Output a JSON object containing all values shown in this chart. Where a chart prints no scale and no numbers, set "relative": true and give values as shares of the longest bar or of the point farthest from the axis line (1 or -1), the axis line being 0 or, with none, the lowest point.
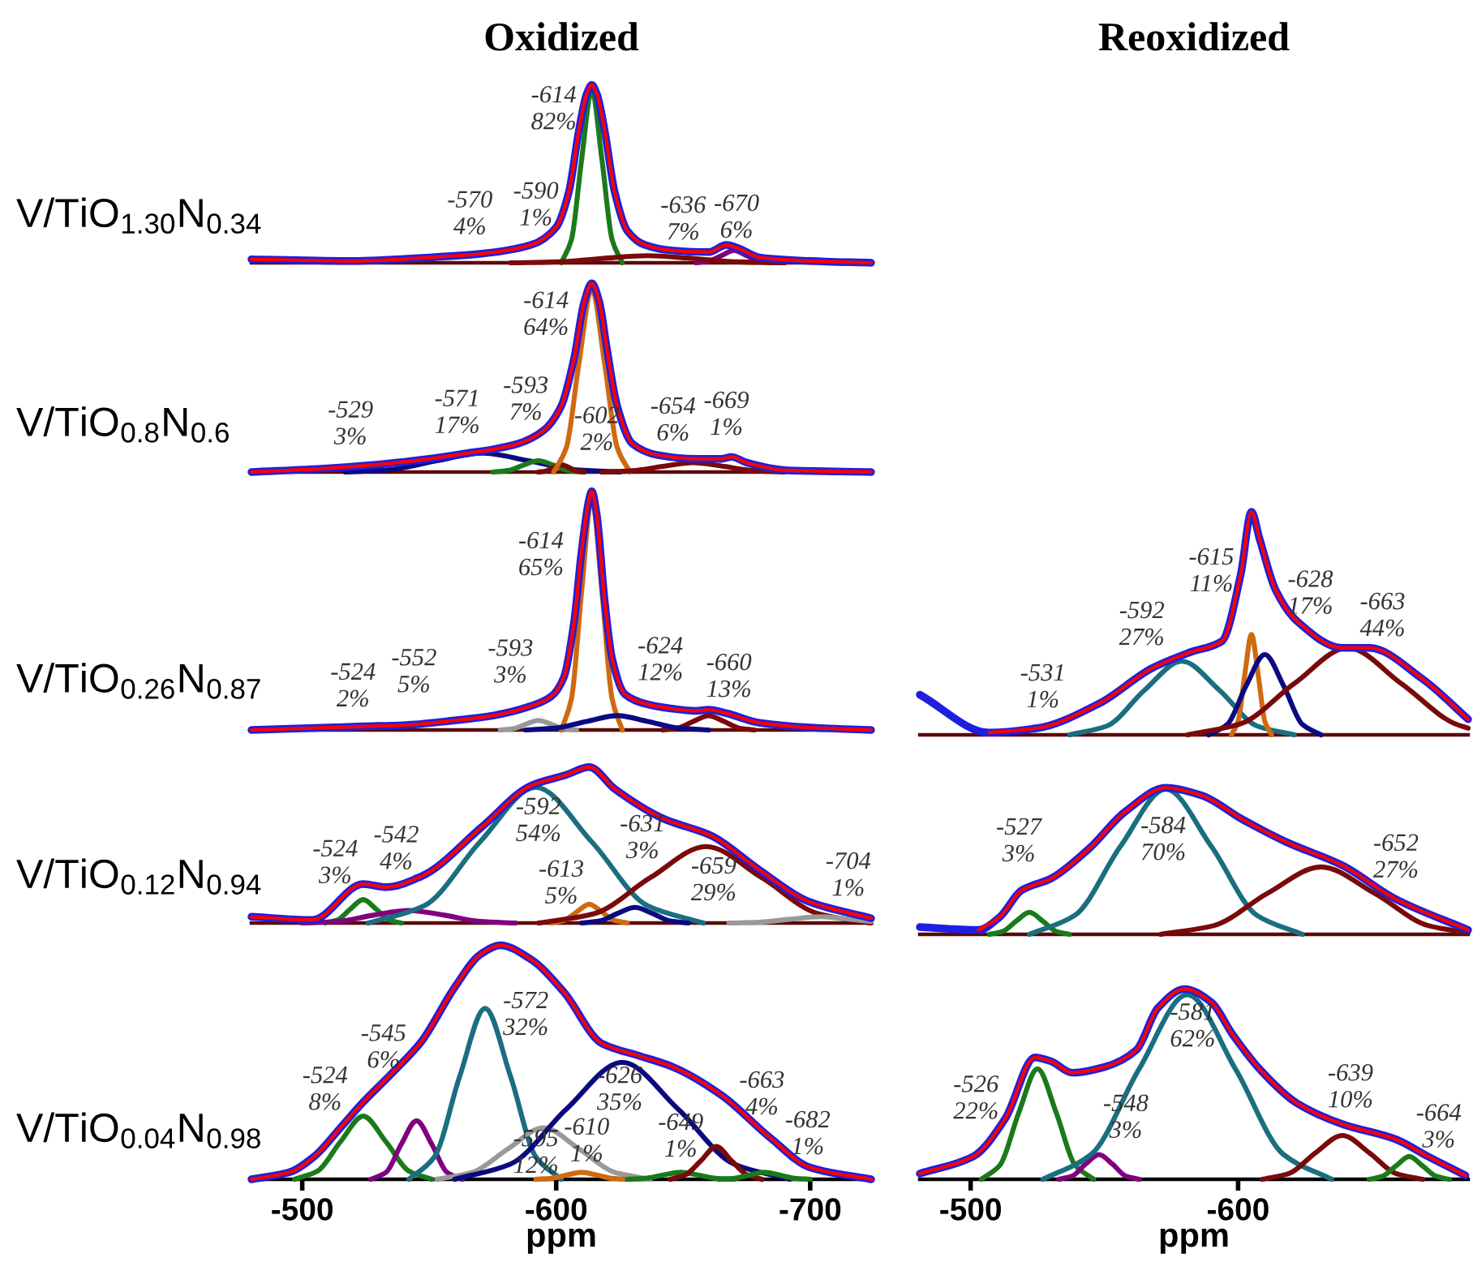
{
  "chart_data": [
    {
      "type": "line",
      "title": "Oxidized",
      "ylabel": "V/TiO$_{1.30}$N$_{0.34}$",
      "relative": true,
      "xlim": [
        -480,
        -724
      ],
      "tick_labels": false,
      "series": [
        {
          "color": "#1f1fe0",
          "x": [
            -480,
            -520,
            -550,
            -570,
            -590,
            -600,
            -605,
            -609,
            -612,
            -614,
            -616,
            -619,
            -623,
            -628,
            -635,
            -645,
            -660,
            -667,
            -672,
            -680,
            -700,
            -724
          ],
          "values": [
            0.02,
            0.01,
            0.03,
            0.05,
            0.1,
            0.2,
            0.4,
            0.75,
            0.95,
            1.0,
            0.95,
            0.75,
            0.4,
            0.18,
            0.1,
            0.07,
            0.06,
            0.1,
            0.08,
            0.03,
            0.01,
            0.0
          ]
        },
        {
          "color": "#ff0000",
          "x": [
            -480,
            -520,
            -550,
            -570,
            -590,
            -600,
            -605,
            -609,
            -612,
            -614,
            -616,
            -619,
            -623,
            -628,
            -635,
            -645,
            -660,
            -667,
            -672,
            -680,
            -700,
            -724
          ],
          "values": [
            0.02,
            0.01,
            0.03,
            0.05,
            0.1,
            0.2,
            0.4,
            0.75,
            0.95,
            1.0,
            0.95,
            0.75,
            0.4,
            0.18,
            0.1,
            0.07,
            0.06,
            0.1,
            0.08,
            0.03,
            0.01,
            0.0
          ]
        },
        {
          "color": "#1a7a1a",
          "x": [
            -602,
            -606,
            -610,
            -614,
            -618,
            -622,
            -626
          ],
          "values": [
            0,
            0.13,
            0.58,
            0.97,
            0.58,
            0.13,
            0
          ]
        },
        {
          "color": "#800080",
          "x": [
            -655,
            -660,
            -665,
            -670,
            -675,
            -680,
            -685
          ],
          "values": [
            0,
            0.01,
            0.04,
            0.07,
            0.04,
            0.01,
            0
          ]
        },
        {
          "color": "#7a0a0a",
          "x": [
            -582,
            -600,
            -618,
            -636,
            -654,
            -672,
            -690
          ],
          "values": [
            0,
            0.005,
            0.024,
            0.04,
            0.024,
            0.005,
            0
          ]
        }
      ],
      "annotations": [
        "-614\n82%",
        "-570\n4%",
        "-590\n1%",
        "-636\n7%",
        "-670\n6%"
      ]
    },
    {
      "type": "line",
      "ylabel": "V/TiO$_{0.8}$N$_{0.6}$",
      "relative": true,
      "xlim": [
        -480,
        -724
      ],
      "tick_labels": false,
      "series": [
        {
          "color": "#1f1fe0",
          "x": [
            -480,
            -510,
            -530,
            -550,
            -565,
            -575,
            -585,
            -595,
            -602,
            -607,
            -611,
            -614,
            -617,
            -620,
            -624,
            -630,
            -640,
            -655,
            -665,
            -669,
            -675,
            -690,
            -724
          ],
          "values": [
            0.0,
            0.02,
            0.04,
            0.07,
            0.1,
            0.12,
            0.15,
            0.22,
            0.35,
            0.6,
            0.9,
            1.0,
            0.9,
            0.65,
            0.35,
            0.15,
            0.09,
            0.07,
            0.07,
            0.08,
            0.05,
            0.01,
            0.0
          ]
        },
        {
          "color": "#ff0000",
          "x": [
            -480,
            -510,
            -530,
            -550,
            -565,
            -575,
            -585,
            -595,
            -602,
            -607,
            -611,
            -614,
            -617,
            -620,
            -624,
            -630,
            -640,
            -655,
            -665,
            -669,
            -675,
            -690,
            -724
          ],
          "values": [
            0.0,
            0.02,
            0.04,
            0.07,
            0.1,
            0.12,
            0.15,
            0.22,
            0.35,
            0.6,
            0.9,
            1.0,
            0.9,
            0.65,
            0.35,
            0.15,
            0.09,
            0.07,
            0.07,
            0.08,
            0.05,
            0.01,
            0.0
          ]
        },
        {
          "color": "#0a0a80",
          "x": [
            -517,
            -535,
            -553,
            -571,
            -589,
            -607,
            -625
          ],
          "values": [
            0,
            0.013,
            0.06,
            0.1,
            0.06,
            0.013,
            0
          ]
        },
        {
          "color": "#1a7a1a",
          "x": [
            -575,
            -581,
            -587,
            -593,
            -599,
            -605,
            -611
          ],
          "values": [
            0,
            0.008,
            0.036,
            0.06,
            0.036,
            0.008,
            0
          ]
        },
        {
          "color": "#7a0a0a",
          "x": [
            -593,
            -596,
            -599,
            -602,
            -605,
            -608,
            -611
          ],
          "values": [
            0,
            0.005,
            0.024,
            0.04,
            0.024,
            0.005,
            0
          ]
        },
        {
          "color": "#d06a10",
          "x": [
            -599,
            -604,
            -609,
            -614,
            -619,
            -624,
            -629
          ],
          "values": [
            0,
            0.13,
            0.58,
            0.97,
            0.58,
            0.13,
            0
          ]
        },
        {
          "color": "#7a0a0a",
          "x": [
            -618,
            -630,
            -642,
            -654,
            -666,
            -678,
            -690
          ],
          "values": [
            0,
            0.007,
            0.03,
            0.05,
            0.03,
            0.007,
            0
          ]
        }
      ],
      "annotations": [
        "-614\n64%",
        "-529\n3%",
        "-571\n17%",
        "-593\n7%",
        "-602\n2%",
        "-654\n6%",
        "-669\n1%"
      ]
    },
    {
      "type": "line",
      "ylabel": "V/TiO$_{0.26}$N$_{0.87}$",
      "relative": true,
      "xlim": [
        -480,
        -724
      ],
      "tick_labels": false,
      "series": [
        {
          "color": "#1f1fe0",
          "x": [
            -480,
            -510,
            -524,
            -540,
            -560,
            -575,
            -590,
            -598,
            -603,
            -607,
            -610,
            -613,
            -614,
            -616,
            -619,
            -622,
            -627,
            -635,
            -645,
            -655,
            -660,
            -667,
            -680,
            -700,
            -724
          ],
          "values": [
            0,
            0.01,
            0.015,
            0.02,
            0.04,
            0.06,
            0.1,
            0.14,
            0.22,
            0.45,
            0.75,
            0.97,
            1.0,
            0.9,
            0.55,
            0.3,
            0.15,
            0.11,
            0.09,
            0.08,
            0.085,
            0.07,
            0.03,
            0.01,
            0
          ]
        },
        {
          "color": "#ff0000",
          "x": [
            -480,
            -510,
            -524,
            -540,
            -560,
            -575,
            -590,
            -598,
            -603,
            -607,
            -610,
            -613,
            -614,
            -616,
            -619,
            -622,
            -627,
            -635,
            -645,
            -655,
            -660,
            -667,
            -680,
            -700,
            -724
          ],
          "values": [
            0,
            0.01,
            0.015,
            0.02,
            0.04,
            0.06,
            0.1,
            0.14,
            0.22,
            0.45,
            0.75,
            0.97,
            1.0,
            0.9,
            0.55,
            0.3,
            0.15,
            0.11,
            0.09,
            0.08,
            0.085,
            0.07,
            0.03,
            0.01,
            0
          ]
        },
        {
          "color": "#999999",
          "x": [
            -578,
            -583,
            -588,
            -593,
            -598,
            -603,
            -608
          ],
          "values": [
            0,
            0.005,
            0.024,
            0.04,
            0.024,
            0.005,
            0
          ]
        },
        {
          "color": "#d06a10",
          "x": [
            -602,
            -606,
            -610,
            -614,
            -618,
            -622,
            -626
          ],
          "values": [
            0,
            0.13,
            0.58,
            0.97,
            0.58,
            0.13,
            0
          ]
        },
        {
          "color": "#7a0a0a",
          "x": [
            -642,
            -648,
            -654,
            -660,
            -666,
            -672,
            -678
          ],
          "values": [
            0,
            0.008,
            0.036,
            0.06,
            0.036,
            0.008,
            0
          ]
        },
        {
          "color": "#0a0a80",
          "x": [
            -588,
            -600,
            -612,
            -624,
            -636,
            -648,
            -660
          ],
          "values": [
            0,
            0.008,
            0.036,
            0.06,
            0.036,
            0.008,
            0
          ]
        }
      ],
      "annotations": [
        "-614\n65%",
        "-524\n2%",
        "-552\n5%",
        "-593\n3%",
        "-624\n12%",
        "-660\n13%"
      ]
    },
    {
      "type": "line",
      "title": "Reoxidized",
      "relative": true,
      "xlim": [
        -481,
        -686
      ],
      "tick_labels": false,
      "series": [
        {
          "color": "#1f1fe0",
          "x": [
            -481,
            -507,
            -525,
            -548,
            -568,
            -582,
            -594,
            -601,
            -605,
            -608,
            -614,
            -622,
            -639,
            -649,
            -669,
            -686
          ],
          "values": [
            0.18,
            0.01,
            0.03,
            0.14,
            0.3,
            0.37,
            0.42,
            0.72,
            1.0,
            0.88,
            0.65,
            0.51,
            0.39,
            0.39,
            0.25,
            0.07
          ]
        },
        {
          "color": "#ff0000",
          "x": [
            -507,
            -525,
            -548,
            -568,
            -582,
            -594,
            -601,
            -605,
            -608,
            -614,
            -622,
            -639,
            -649,
            -669,
            -686
          ],
          "values": [
            0.01,
            0.03,
            0.14,
            0.3,
            0.37,
            0.42,
            0.72,
            1.0,
            0.88,
            0.65,
            0.51,
            0.39,
            0.39,
            0.25,
            0.07
          ]
        },
        {
          "color": "#1a6e80",
          "x": [
            -537,
            -551,
            -565,
            -579,
            -593,
            -607,
            -621
          ],
          "values": [
            0,
            0.04,
            0.2,
            0.33,
            0.2,
            0.04,
            0
          ]
        },
        {
          "color": "#d06a10",
          "x": [
            -597.5,
            -600,
            -602.5,
            -605,
            -607.5,
            -610,
            -612.5
          ],
          "values": [
            0,
            0.06,
            0.27,
            0.45,
            0.27,
            0.06,
            0
          ]
        },
        {
          "color": "#0a0a80",
          "x": [
            -589,
            -596,
            -603,
            -610,
            -617,
            -624,
            -631
          ],
          "values": [
            0,
            0.047,
            0.22,
            0.36,
            0.22,
            0.047,
            0
          ]
        },
        {
          "color": "#7a0a0a",
          "x": [
            -581,
            -601,
            -621,
            -641,
            -661,
            -681,
            -686
          ],
          "values": [
            0,
            0.05,
            0.23,
            0.39,
            0.23,
            0.05,
            0.03
          ]
        }
      ],
      "annotations": [
        "-531\n1%",
        "-592\n27%",
        "-615\n11%",
        "-628\n17%",
        "-663\n44%"
      ]
    },
    {
      "type": "line",
      "ylabel": "V/TiO$_{0.12}$N$_{0.94}$",
      "relative": true,
      "xlim": [
        -480,
        -724
      ],
      "tick_labels": false,
      "series": [
        {
          "color": "#1f1fe0",
          "x": [
            -480,
            -504,
            -524,
            -533,
            -547,
            -571,
            -590,
            -604,
            -613,
            -623,
            -642,
            -661,
            -680,
            -699,
            -724
          ],
          "values": [
            0.04,
            0.02,
            0.25,
            0.23,
            0.3,
            0.62,
            0.88,
            0.95,
            1.0,
            0.86,
            0.67,
            0.56,
            0.34,
            0.14,
            0.03
          ]
        },
        {
          "color": "#ff0000",
          "x": [
            -480,
            -504,
            -524,
            -533,
            -547,
            -571,
            -590,
            -604,
            -613,
            -623,
            -642,
            -661,
            -680,
            -699,
            -724
          ],
          "values": [
            0.04,
            0.02,
            0.25,
            0.23,
            0.3,
            0.62,
            0.88,
            0.95,
            1.0,
            0.86,
            0.67,
            0.56,
            0.34,
            0.14,
            0.03
          ]
        },
        {
          "color": "#1a7a1a",
          "x": [
            -509,
            -514,
            -519,
            -524,
            -529,
            -534,
            -539
          ],
          "values": [
            0,
            0.02,
            0.09,
            0.15,
            0.09,
            0.02,
            0
          ]
        },
        {
          "color": "#800080",
          "x": [
            -500,
            -514,
            -528,
            -542,
            -556,
            -570,
            -584
          ],
          "values": [
            0,
            0.01,
            0.05,
            0.08,
            0.05,
            0.01,
            0
          ]
        },
        {
          "color": "#1a6e80",
          "x": [
            -526,
            -548,
            -570,
            -592,
            -614,
            -636,
            -658
          ],
          "values": [
            0,
            0.11,
            0.52,
            0.87,
            0.52,
            0.11,
            0
          ]
        },
        {
          "color": "#d06a10",
          "x": [
            -598,
            -603,
            -608,
            -613,
            -618,
            -623,
            -628
          ],
          "values": [
            0,
            0.016,
            0.07,
            0.12,
            0.07,
            0.016,
            0
          ]
        },
        {
          "color": "#0a0a80",
          "x": [
            -610,
            -617,
            -624,
            -631,
            -638,
            -645,
            -652
          ],
          "values": [
            0,
            0.013,
            0.06,
            0.1,
            0.06,
            0.013,
            0
          ]
        },
        {
          "color": "#7a0a0a",
          "x": [
            -593,
            -615,
            -637,
            -659,
            -681,
            -703,
            -724
          ],
          "values": [
            0,
            0.06,
            0.29,
            0.49,
            0.29,
            0.06,
            0
          ]
        },
        {
          "color": "#999999",
          "x": [
            -668,
            -680,
            -692,
            -704,
            -716,
            -724
          ],
          "values": [
            0,
            0.005,
            0.024,
            0.04,
            0.024,
            0.01
          ]
        }
      ],
      "annotations": [
        "-524\n3%",
        "-542\n4%",
        "-592\n54%",
        "-613\n5%",
        "-631\n3%",
        "-659\n29%",
        "-704\n1%"
      ]
    },
    {
      "type": "line",
      "relative": true,
      "xlim": [
        -481,
        -686
      ],
      "tick_labels": false,
      "series": [
        {
          "color": "#1f1fe0",
          "x": [
            -481,
            -503,
            -511,
            -519,
            -530,
            -544,
            -558,
            -573,
            -586,
            -602,
            -618,
            -639,
            -659,
            -686
          ],
          "values": [
            0.05,
            0.03,
            0.12,
            0.3,
            0.38,
            0.58,
            0.84,
            1.0,
            0.95,
            0.78,
            0.63,
            0.47,
            0.24,
            0.03
          ]
        },
        {
          "color": "#ff0000",
          "x": [
            -503,
            -511,
            -519,
            -530,
            -544,
            -558,
            -573,
            -586,
            -602,
            -618,
            -639,
            -659,
            -686
          ],
          "values": [
            0.03,
            0.12,
            0.3,
            0.38,
            0.58,
            0.84,
            1.0,
            0.95,
            0.78,
            0.63,
            0.47,
            0.24,
            0.03
          ]
        },
        {
          "color": "#1a7a1a",
          "x": [
            -507,
            -512,
            -517,
            -522,
            -527,
            -532,
            -537
          ],
          "values": [
            0,
            0.02,
            0.09,
            0.15,
            0.09,
            0.02,
            0
          ]
        },
        {
          "color": "#1a6e80",
          "x": [
            -522,
            -539,
            -556,
            -573,
            -590,
            -607,
            -624
          ],
          "values": [
            0,
            0.13,
            0.6,
            0.99,
            0.6,
            0.13,
            0
          ]
        },
        {
          "color": "#7a0a0a",
          "x": [
            -571,
            -591,
            -611,
            -631,
            -651,
            -671,
            -686
          ],
          "values": [
            0,
            0.06,
            0.28,
            0.46,
            0.28,
            0.06,
            0.01
          ]
        }
      ],
      "annotations": [
        "-527\n3%",
        "-584\n70%",
        "-652\n27%"
      ]
    },
    {
      "type": "line",
      "ylabel": "V/TiO$_{0.04}$N$_{0.98}$",
      "xlabel": "ppm",
      "relative": true,
      "xlim": [
        -480,
        -724
      ],
      "xticks": [
        -500,
        -600,
        -700
      ],
      "tick_labels": "x",
      "series": [
        {
          "color": "#1f1fe0",
          "x": [
            -480,
            -495,
            -505,
            -515,
            -524,
            -535,
            -547,
            -560,
            -570,
            -578,
            -590,
            -603,
            -618,
            -632,
            -646,
            -665,
            -684,
            -700,
            -724
          ],
          "values": [
            0.0,
            0.03,
            0.1,
            0.22,
            0.33,
            0.45,
            0.59,
            0.82,
            0.96,
            1.0,
            0.94,
            0.8,
            0.58,
            0.53,
            0.48,
            0.36,
            0.18,
            0.05,
            0.0
          ]
        },
        {
          "color": "#ff0000",
          "x": [
            -480,
            -495,
            -505,
            -515,
            -524,
            -535,
            -547,
            -560,
            -570,
            -578,
            -590,
            -603,
            -618,
            -632,
            -646,
            -665,
            -684,
            -700,
            -724
          ],
          "values": [
            0.0,
            0.03,
            0.1,
            0.22,
            0.33,
            0.45,
            0.59,
            0.82,
            0.96,
            1.0,
            0.94,
            0.8,
            0.58,
            0.53,
            0.48,
            0.36,
            0.18,
            0.05,
            0.0
          ]
        },
        {
          "color": "#1a7a1a",
          "x": [
            -497,
            -506,
            -515,
            -524,
            -533,
            -542,
            -551
          ],
          "values": [
            0,
            0.035,
            0.16,
            0.27,
            0.16,
            0.035,
            0
          ]
        },
        {
          "color": "#800080",
          "x": [
            -527,
            -533,
            -539,
            -545,
            -551,
            -557,
            -563
          ],
          "values": [
            0,
            0.03,
            0.15,
            0.25,
            0.15,
            0.03,
            0
          ]
        },
        {
          "color": "#1a6e80",
          "x": [
            -542,
            -552,
            -562,
            -572,
            -582,
            -592,
            -602
          ],
          "values": [
            0,
            0.095,
            0.44,
            0.73,
            0.44,
            0.095,
            0
          ]
        },
        {
          "color": "#999999",
          "x": [
            -553,
            -567,
            -581,
            -595,
            -609,
            -623,
            -637
          ],
          "values": [
            0,
            0.03,
            0.13,
            0.22,
            0.13,
            0.03,
            0
          ]
        },
        {
          "color": "#d06a10",
          "x": [
            -592,
            -598,
            -604,
            -610,
            -616,
            -622,
            -628
          ],
          "values": [
            0,
            0.004,
            0.018,
            0.03,
            0.018,
            0.004,
            0
          ]
        },
        {
          "color": "#0a0a80",
          "x": [
            -560,
            -582,
            -604,
            -626,
            -648,
            -670,
            -692
          ],
          "values": [
            0,
            0.065,
            0.3,
            0.5,
            0.3,
            0.065,
            0
          ]
        },
        {
          "color": "#1a7a1a",
          "x": [
            -628,
            -635,
            -642,
            -649,
            -656,
            -663,
            -670
          ],
          "values": [
            0,
            0.004,
            0.018,
            0.03,
            0.018,
            0.004,
            0
          ]
        },
        {
          "color": "#7a0a0a",
          "x": [
            -645,
            -651,
            -657,
            -663,
            -669,
            -675,
            -681
          ],
          "values": [
            0,
            0.02,
            0.08,
            0.14,
            0.08,
            0.02,
            0
          ]
        },
        {
          "color": "#1a7a1a",
          "x": [
            -664,
            -670,
            -676,
            -682,
            -688,
            -694,
            -700
          ],
          "values": [
            0,
            0.004,
            0.018,
            0.03,
            0.018,
            0.004,
            0
          ]
        }
      ],
      "annotations": [
        "-524\n8%",
        "-545\n6%",
        "-572\n32%",
        "-626\n35%",
        "-595\n12%",
        "-610\n1%",
        "-649\n1%",
        "-663\n4%",
        "-682\n1%"
      ]
    },
    {
      "type": "line",
      "xlabel": "ppm",
      "relative": true,
      "xlim": [
        -481,
        -686
      ],
      "xticks": [
        -500,
        -600
      ],
      "tick_labels": "x",
      "series": [
        {
          "color": "#1f1fe0",
          "x": [
            -481,
            -501,
            -513,
            -524,
            -530,
            -538,
            -550,
            -562,
            -570,
            -580,
            -590,
            -598,
            -608,
            -622,
            -639,
            -659,
            -671,
            -685
          ],
          "values": [
            0.03,
            0.12,
            0.32,
            0.64,
            0.62,
            0.56,
            0.59,
            0.68,
            0.9,
            1.0,
            0.93,
            0.76,
            0.58,
            0.4,
            0.29,
            0.21,
            0.12,
            0.02
          ]
        },
        {
          "color": "#ff0000",
          "x": [
            -481,
            -501,
            -513,
            -524,
            -530,
            -538,
            -550,
            -562,
            -570,
            -580,
            -590,
            -598,
            -608,
            -622,
            -639,
            -659,
            -671,
            -685
          ],
          "values": [
            0.03,
            0.12,
            0.32,
            0.64,
            0.62,
            0.56,
            0.59,
            0.68,
            0.9,
            1.0,
            0.93,
            0.76,
            0.58,
            0.4,
            0.29,
            0.21,
            0.12,
            0.02
          ]
        },
        {
          "color": "#1a7a1a",
          "x": [
            -504,
            -511,
            -518,
            -525,
            -532,
            -539,
            -546
          ],
          "values": [
            0,
            0.075,
            0.35,
            0.58,
            0.35,
            0.075,
            0
          ]
        },
        {
          "color": "#800080",
          "x": [
            -533,
            -538,
            -543,
            -548,
            -553,
            -558,
            -563
          ],
          "values": [
            0,
            0.017,
            0.08,
            0.13,
            0.08,
            0.017,
            0
          ]
        },
        {
          "color": "#1a6e80",
          "x": [
            -527,
            -545,
            -563,
            -581,
            -599,
            -617,
            -635
          ],
          "values": [
            0,
            0.13,
            0.58,
            0.97,
            0.58,
            0.13,
            0
          ]
        },
        {
          "color": "#7a0a0a",
          "x": [
            -609,
            -619,
            -629,
            -639,
            -649,
            -659,
            -669
          ],
          "values": [
            0,
            0.03,
            0.14,
            0.23,
            0.14,
            0.03,
            0
          ]
        },
        {
          "color": "#1a7a1a",
          "x": [
            -649,
            -654,
            -659,
            -664,
            -669,
            -674,
            -679
          ],
          "values": [
            0,
            0.016,
            0.07,
            0.12,
            0.07,
            0.016,
            0
          ]
        }
      ],
      "annotations": [
        "-526\n22%",
        "-548\n3%",
        "-581\n62%",
        "-639\n10%",
        "-664\n3%"
      ]
    }
  ]
}
